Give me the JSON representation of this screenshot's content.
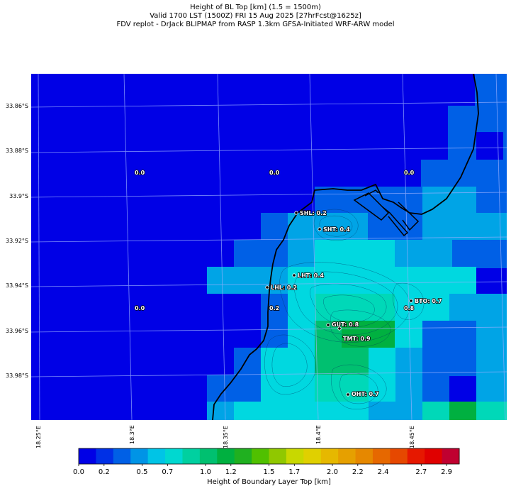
{
  "titles": {
    "line1": "Height of BL Top [km] (1.5 = 1500m)",
    "line2": "Valid 1700 LST (1500Z) FRI 15 Aug 2025 [27hrFcst@1625z]",
    "line3": "FDV replot - DrJack BLIPMAP from RASP 1.3km GFSA-Initiated WRF-ARW model"
  },
  "lat_labels": [
    "33.86°S",
    "33.88°S",
    "33.9°S",
    "33.92°S",
    "33.94°S",
    "33.96°S",
    "33.98°S"
  ],
  "lon_labels": [
    "18.25°E",
    "18.3°E",
    "18.35°E",
    "18.4°E",
    "18.45°E"
  ],
  "stations": [
    {
      "code": "SHL",
      "label": "SHL: 0.2"
    },
    {
      "code": "SHT",
      "label": "SHT: 0.4"
    },
    {
      "code": "LHT",
      "label": "LHT: 0.4"
    },
    {
      "code": "LHL",
      "label": "LHL: 0.2"
    },
    {
      "code": "BTO",
      "label": "BTO: 0.7"
    },
    {
      "code": "GUT",
      "label": "GUT: 0.8"
    },
    {
      "code": "TMT",
      "label": "TMT: 0.9"
    },
    {
      "code": "OHT",
      "label": "OHT: 0.7"
    }
  ],
  "grid_values": [
    "0.0",
    "0.0",
    "0.0",
    "0.0",
    "0.2",
    "0.8"
  ],
  "colorbar": {
    "title": "Height of Boundary Layer Top [km]",
    "tick_labels": [
      "0.0",
      "0.2",
      "0.5",
      "0.7",
      "1.0",
      "1.2",
      "1.5",
      "1.7",
      "2.0",
      "2.2",
      "2.4",
      "2.7",
      "2.9"
    ],
    "range_km": [
      0.0,
      3.0
    ],
    "colors": [
      "#0000e6",
      "#0030e6",
      "#0060e6",
      "#0094e6",
      "#00c4e6",
      "#00d8d0",
      "#00d0a0",
      "#00c070",
      "#00b040",
      "#20b020",
      "#50c000",
      "#90c800",
      "#c8d800",
      "#e0d000",
      "#e6b800",
      "#e6a000",
      "#e68800",
      "#e66800",
      "#e64800",
      "#e61800",
      "#e00000",
      "#c00030"
    ]
  },
  "map": {
    "field": "Height of BL Top [km]",
    "lat_range": [
      "33.853°S",
      "34.0°S"
    ],
    "lon_range": [
      "18.247°E",
      "18.475°E"
    ],
    "colors": {
      "bl_0.0": "#0000e6",
      "bl_0.2": "#0060e6",
      "bl_0.4": "#00a4e6",
      "bl_0.6": "#00d8e0",
      "bl_0.8": "#00d8b8",
      "bl_0.9": "#00c070",
      "bl_1.0": "#00b040",
      "coastline": "#000000",
      "gridline": "#9ab0ff",
      "terrain_contour": "#003060"
    }
  }
}
